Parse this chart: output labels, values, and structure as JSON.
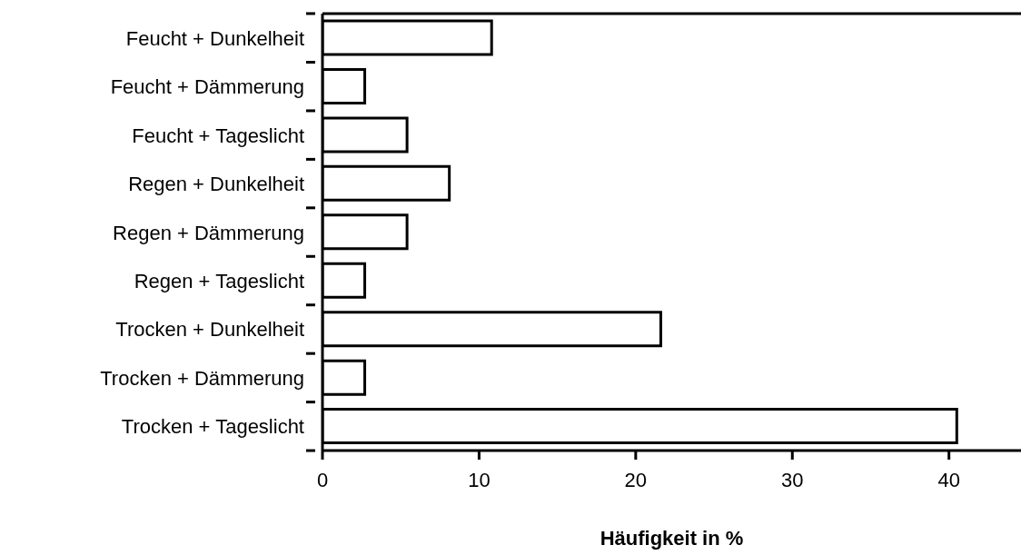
{
  "chart_data": {
    "type": "bar",
    "orientation": "horizontal",
    "categories": [
      "Feucht + Dunkelheit",
      "Feucht + Dämmerung",
      "Feucht + Tageslicht",
      "Regen + Dunkelheit",
      "Regen + Dämmerung",
      "Regen +  Tageslicht",
      "Trocken + Dunkelheit",
      "Trocken + Dämmerung",
      "Trocken + Tageslicht"
    ],
    "values": [
      10.8,
      2.7,
      5.4,
      8.1,
      5.4,
      2.7,
      21.6,
      2.7,
      40.5
    ],
    "color": "#ffffff",
    "xlabel": "Häufigkeit in %",
    "xlim": [
      0,
      44.6
    ],
    "xticks": [
      0,
      10,
      20,
      30,
      40
    ]
  }
}
